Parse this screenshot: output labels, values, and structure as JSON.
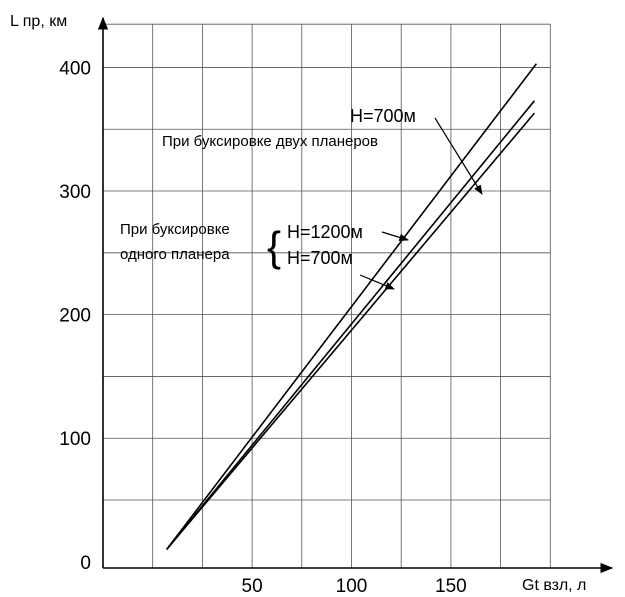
{
  "chart_data": {
    "type": "line",
    "title": "",
    "xlabel": "Gt взл, л",
    "ylabel": "L пр, км",
    "xlim": [
      -25,
      225
    ],
    "ylim": [
      -5,
      440
    ],
    "x_ticks": [
      50,
      100,
      150
    ],
    "y_ticks": [
      0,
      100,
      200,
      300,
      400
    ],
    "y_tick_labels": [
      "0",
      "100",
      "200",
      "300",
      "400"
    ],
    "x_tick_labels": [
      "50",
      "100",
      "150"
    ],
    "grid": true,
    "grid_x": [
      0,
      25,
      50,
      75,
      100,
      125,
      150,
      175,
      200
    ],
    "grid_y": [
      50,
      100,
      150,
      200,
      250,
      300,
      350,
      400
    ],
    "series": [
      {
        "id": "two-gliders-h700",
        "x": [
          7,
          193
        ],
        "y": [
          10,
          403
        ]
      },
      {
        "id": "one-glider-h1200",
        "x": [
          7,
          192
        ],
        "y": [
          10,
          373
        ]
      },
      {
        "id": "one-glider-h700",
        "x": [
          7,
          192
        ],
        "y": [
          10,
          363
        ]
      }
    ],
    "annotations": {
      "two_gliders_label": "При буксировке двух планеров",
      "two_gliders_h": "Н=700м",
      "one_glider_label_1": "При буксировке",
      "one_glider_label_2": "одного планера",
      "one_glider_h1200": "Н=1200м",
      "one_glider_h700": "Н=700м",
      "brace": "{"
    }
  }
}
